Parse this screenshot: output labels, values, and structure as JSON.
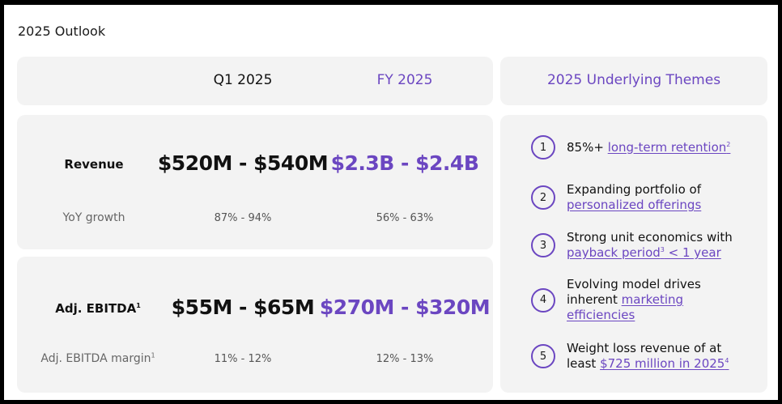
{
  "title": "2025 Outlook",
  "columns": {
    "q1": "Q1 2025",
    "fy": "FY 2025",
    "themes": "2025 Underlying Themes"
  },
  "revenue": {
    "label": "Revenue",
    "q1": "$520M - $540M",
    "fy": "$2.3B - $2.4B",
    "growth_label": "YoY growth",
    "growth_q1": "87% - 94%",
    "growth_fy": "56% - 63%"
  },
  "ebitda": {
    "label": "Adj. EBITDA",
    "label_sup": "1",
    "q1": "$55M - $65M",
    "fy": "$270M - $320M",
    "margin_label": "Adj. EBITDA margin",
    "margin_sup": "1",
    "margin_q1": "11% - 12%",
    "margin_fy": "12% - 13%"
  },
  "themes": [
    {
      "number": "1",
      "text_pre": "85%+ ",
      "link": "long-term retention",
      "sup": "2"
    },
    {
      "number": "2",
      "line1": "Expanding portfolio of",
      "link": "personalized offerings"
    },
    {
      "number": "3",
      "line1": "Strong unit economics with",
      "link": "payback period",
      "sup": "3",
      "link2": " < 1 year"
    },
    {
      "number": "4",
      "line1": "Evolving model drives",
      "line2_pre": "inherent ",
      "link": "marketing",
      "link_line2": "efficiencies"
    },
    {
      "number": "5",
      "line1": "Weight loss revenue of at",
      "line2_pre": "least ",
      "link": "$725 million in 2025",
      "sup": "4"
    }
  ],
  "colors": {
    "accent": "#6b46c1",
    "card": "#f3f3f3"
  }
}
